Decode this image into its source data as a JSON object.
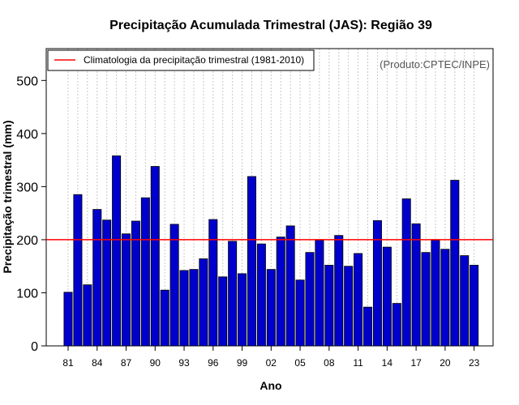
{
  "chart_data": {
    "type": "bar",
    "title": "Precipitação Acumulada Trimestral (JAS): Região 39",
    "xlabel": "Ano",
    "ylabel": "Precipitação trimestral (mm)",
    "credit": "(Produto:CPTEC/INPE)",
    "legend_label": "Climatologia da precipitação trimestral (1981-2010)",
    "legend_position": "top-left",
    "ylim": [
      0,
      560
    ],
    "yticks": [
      0,
      100,
      200,
      300,
      400,
      500
    ],
    "climatology": 200,
    "years": [
      1981,
      1982,
      1983,
      1984,
      1985,
      1986,
      1987,
      1988,
      1989,
      1990,
      1991,
      1992,
      1993,
      1994,
      1995,
      1996,
      1997,
      1998,
      1999,
      2000,
      2001,
      2002,
      2003,
      2004,
      2005,
      2006,
      2007,
      2008,
      2009,
      2010,
      2011,
      2012,
      2013,
      2014,
      2015,
      2016,
      2017,
      2018,
      2019,
      2020,
      2021,
      2022,
      2023
    ],
    "values": [
      101,
      285,
      115,
      257,
      237,
      358,
      211,
      235,
      279,
      338,
      105,
      229,
      142,
      144,
      164,
      238,
      130,
      197,
      136,
      319,
      192,
      144,
      205,
      226,
      124,
      176,
      199,
      152,
      208,
      150,
      174,
      73,
      236,
      186,
      80,
      277,
      230,
      176,
      199,
      182,
      312,
      170,
      152
    ],
    "tick_labels": [
      "81",
      "84",
      "87",
      "90",
      "93",
      "96",
      "99",
      "02",
      "05",
      "08",
      "11",
      "14",
      "17",
      "20",
      "23"
    ],
    "grid": "vertical dotted",
    "colors": {
      "bar_fill": "#0000CD",
      "bar_edge": "#000000",
      "climatology_line": "#FF0000",
      "grid": "#C8C8C8"
    }
  }
}
